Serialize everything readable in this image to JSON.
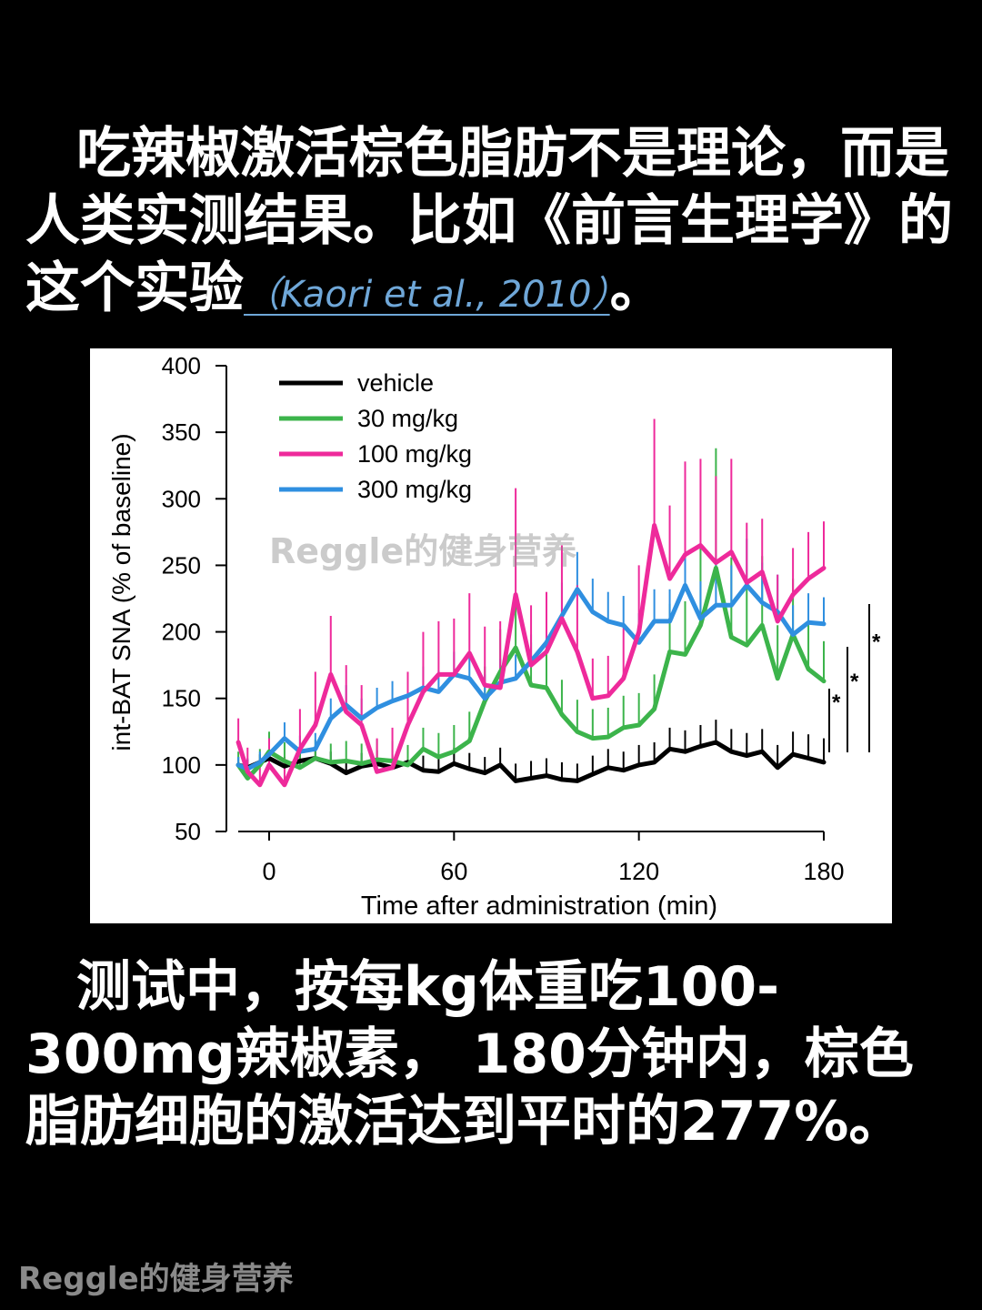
{
  "text": {
    "para1_a": "吃辣椒激活棕色脂肪不是理论，而是人类实测结果。比如《前言生理学》的这个实验",
    "citation": "（Kaori et al., 2010）",
    "para1_end": "。",
    "para2": "测试中，按每kg体重吃100-300mg辣椒素， 180分钟内，棕色脂肪细胞的激活达到平时的277%。",
    "watermark_chart": "Reggle的健身营养",
    "watermark_bottom": "Reggle的健身营养"
  },
  "colors": {
    "vehicle": "#000000",
    "30": "#3cb44b",
    "100": "#ee2a9b",
    "300": "#2f8fe0",
    "citation": "#6fa7d8"
  },
  "chart_data": {
    "type": "line",
    "xlabel": "Time after administration (min)",
    "ylabel": "int-BAT SNA (% of baseline)",
    "xlim": [
      -10,
      180
    ],
    "ylim": [
      50,
      400
    ],
    "xticks": [
      0,
      60,
      120,
      180
    ],
    "yticks": [
      50,
      100,
      150,
      200,
      250,
      300,
      350,
      400
    ],
    "grid": false,
    "legend_position": "top-left",
    "significance_markers": [
      "*",
      "*",
      "*"
    ],
    "x": [
      -10,
      -7,
      -3,
      0,
      5,
      10,
      15,
      20,
      25,
      30,
      35,
      40,
      45,
      50,
      55,
      60,
      65,
      70,
      75,
      80,
      85,
      90,
      95,
      100,
      105,
      110,
      115,
      120,
      125,
      130,
      135,
      140,
      145,
      150,
      155,
      160,
      165,
      170,
      175,
      180
    ],
    "series": [
      {
        "name": "vehicle",
        "color": "#000000",
        "values": [
          100,
          98,
          102,
          105,
          99,
          103,
          105,
          101,
          94,
          99,
          101,
          98,
          102,
          96,
          95,
          101,
          97,
          94,
          100,
          88,
          90,
          92,
          89,
          88,
          93,
          98,
          96,
          100,
          102,
          112,
          110,
          114,
          117,
          110,
          107,
          110,
          98,
          108,
          105,
          102
        ],
        "error": [
          6,
          6,
          6,
          7,
          7,
          8,
          8,
          9,
          9,
          10,
          10,
          10,
          11,
          11,
          11,
          12,
          12,
          12,
          13,
          13,
          13,
          13,
          13,
          13,
          14,
          14,
          14,
          15,
          15,
          16,
          16,
          16,
          17,
          17,
          17,
          17,
          17,
          17,
          18,
          18
        ]
      },
      {
        "name": "30 mg/kg",
        "color": "#3cb44b",
        "values": [
          100,
          90,
          100,
          110,
          103,
          98,
          105,
          102,
          103,
          101,
          104,
          103,
          100,
          112,
          106,
          110,
          118,
          148,
          170,
          188,
          160,
          158,
          138,
          125,
          120,
          121,
          128,
          130,
          142,
          185,
          183,
          205,
          248,
          196,
          190,
          205,
          165,
          198,
          172,
          163
        ],
        "error": [
          10,
          12,
          12,
          15,
          14,
          14,
          14,
          14,
          15,
          15,
          15,
          15,
          15,
          16,
          18,
          20,
          22,
          26,
          32,
          38,
          32,
          30,
          26,
          24,
          22,
          22,
          24,
          24,
          26,
          36,
          40,
          58,
          90,
          60,
          48,
          52,
          40,
          42,
          34,
          30
        ]
      },
      {
        "name": "100 mg/kg",
        "color": "#ee2a9b",
        "values": [
          117,
          95,
          85,
          100,
          85,
          112,
          130,
          168,
          140,
          130,
          95,
          98,
          130,
          155,
          168,
          168,
          184,
          160,
          158,
          228,
          175,
          185,
          210,
          185,
          150,
          152,
          165,
          200,
          280,
          240,
          258,
          265,
          252,
          260,
          237,
          245,
          208,
          228,
          240,
          248
        ],
        "error": [
          18,
          18,
          15,
          20,
          20,
          30,
          40,
          44,
          35,
          30,
          25,
          30,
          40,
          45,
          40,
          42,
          45,
          44,
          50,
          80,
          45,
          45,
          55,
          50,
          30,
          30,
          40,
          50,
          80,
          55,
          70,
          65,
          65,
          70,
          45,
          40,
          35,
          35,
          35,
          35
        ]
      },
      {
        "name": "300 mg/kg",
        "color": "#2f8fe0",
        "values": [
          100,
          97,
          102,
          108,
          120,
          110,
          112,
          135,
          145,
          135,
          143,
          148,
          152,
          158,
          155,
          168,
          165,
          150,
          162,
          165,
          178,
          192,
          212,
          232,
          215,
          208,
          205,
          192,
          208,
          208,
          235,
          210,
          220,
          220,
          235,
          222,
          215,
          198,
          207,
          206
        ],
        "error": [
          6,
          8,
          8,
          10,
          12,
          12,
          12,
          15,
          15,
          15,
          15,
          15,
          16,
          16,
          16,
          17,
          18,
          18,
          18,
          18,
          20,
          22,
          25,
          28,
          25,
          22,
          22,
          22,
          24,
          24,
          30,
          28,
          30,
          30,
          35,
          30,
          28,
          22,
          22,
          20
        ]
      }
    ]
  }
}
